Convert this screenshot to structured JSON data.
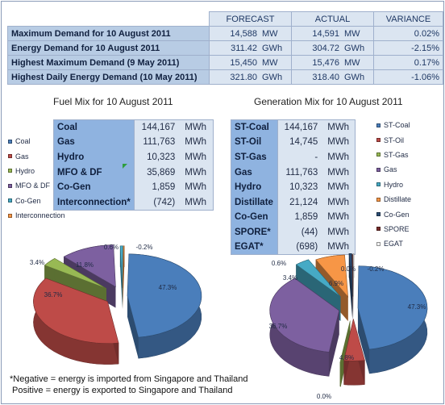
{
  "summary": {
    "headers": [
      "FORECAST",
      "ACTUAL",
      "VARIANCE"
    ],
    "rows": [
      {
        "label": "Maximum Demand for 10 August 2011",
        "forecast": "14,588",
        "forecast_unit": "MW",
        "actual": "14,591",
        "actual_unit": "MW",
        "variance": "0.02%"
      },
      {
        "label": "Energy Demand for 10 August 2011",
        "forecast": "311.42",
        "forecast_unit": "GWh",
        "actual": "304.72",
        "actual_unit": "GWh",
        "variance": "-2.15%"
      },
      {
        "label": "Highest Maximum Demand (9 May 2011)",
        "forecast": "15,450",
        "forecast_unit": "MW",
        "actual": "15,476",
        "actual_unit": "MW",
        "variance": "0.17%"
      },
      {
        "label": "Highest Daily Energy Demand (10 May 2011)",
        "forecast": "321.80",
        "forecast_unit": "GWh",
        "actual": "318.40",
        "actual_unit": "GWh",
        "variance": "-1.06%"
      }
    ]
  },
  "fuel_mix": {
    "title": "Fuel Mix for 10 August 2011",
    "unit": "MWh",
    "rows": [
      {
        "name": "Coal",
        "value": "144,167"
      },
      {
        "name": "Gas",
        "value": "111,763"
      },
      {
        "name": "Hydro",
        "value": "10,323"
      },
      {
        "name": "MFO & DF",
        "value": "35,869"
      },
      {
        "name": "Co-Gen",
        "value": "1,859"
      },
      {
        "name": "Interconnection*",
        "value": "(742)"
      }
    ],
    "legend": [
      "Coal",
      "Gas",
      "Hydro",
      "MFO & DF",
      "Co-Gen",
      "Interconnection"
    ]
  },
  "generation_mix": {
    "title": "Generation Mix for 10 August 2011",
    "unit": "MWh",
    "rows": [
      {
        "name": "ST-Coal",
        "value": "144,167"
      },
      {
        "name": "ST-Oil",
        "value": "14,745"
      },
      {
        "name": "ST-Gas",
        "value": "-"
      },
      {
        "name": "Gas",
        "value": "111,763"
      },
      {
        "name": "Hydro",
        "value": "10,323"
      },
      {
        "name": "Distillate",
        "value": "21,124"
      },
      {
        "name": "Co-Gen",
        "value": "1,859"
      },
      {
        "name": "SPORE*",
        "value": "(44)"
      },
      {
        "name": "EGAT*",
        "value": "(698)"
      }
    ],
    "legend": [
      "ST-Coal",
      "ST-Oil",
      "ST-Gas",
      "Gas",
      "Hydro",
      "Distillate",
      "Co-Gen",
      "SPORE",
      "EGAT"
    ]
  },
  "notes": {
    "line1": "*Negative = energy is imported from Singapore and Thailand",
    "line2": "Positive = energy is exported to Singapore and Thailand"
  },
  "colors": {
    "coal": "#4a7ebb",
    "gas": "#be4b48",
    "hydro": "#98b954",
    "mfo": "#7d60a0",
    "cogen": "#46aac5",
    "interconnection": "#f79646",
    "egat": "#f2f2f2"
  },
  "chart_data": [
    {
      "type": "pie",
      "title": "Fuel Mix for 10 August 2011",
      "categories": [
        "Coal",
        "Gas",
        "Hydro",
        "MFO & DF",
        "Co-Gen",
        "Interconnection"
      ],
      "values": [
        47.3,
        36.7,
        3.4,
        11.8,
        0.6,
        -0.2
      ],
      "labels": [
        "47.3%",
        "36.7%",
        "3.4%",
        "11.8%",
        "0.6%",
        "-0.2%"
      ],
      "colors": [
        "#4a7ebb",
        "#be4b48",
        "#98b954",
        "#7d60a0",
        "#46aac5",
        "#f79646"
      ]
    },
    {
      "type": "pie",
      "title": "Generation Mix for 10 August 2011",
      "categories": [
        "ST-Coal",
        "ST-Oil",
        "ST-Gas",
        "Gas",
        "Hydro",
        "Distillate",
        "Co-Gen",
        "SPORE",
        "EGAT"
      ],
      "values": [
        47.3,
        4.8,
        0.0,
        36.7,
        3.4,
        6.9,
        0.6,
        0.0,
        -0.2
      ],
      "labels": [
        "47.3%",
        "4.8%",
        "0.0%",
        "36.7%",
        "3.4%",
        "6.9%",
        "0.6%",
        "0.0%",
        "-0.2%"
      ],
      "colors": [
        "#4a7ebb",
        "#be4b48",
        "#98b954",
        "#7d60a0",
        "#46aac5",
        "#f79646",
        "#2c4d75",
        "#772c2a",
        "#f2f2f2"
      ]
    }
  ]
}
